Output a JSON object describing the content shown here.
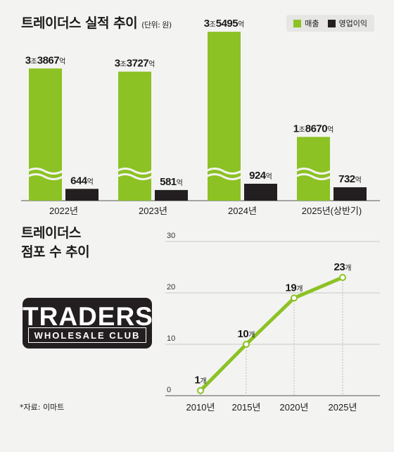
{
  "bar_title": "트레이더스 실적 추이",
  "bar_unit": "(단위: 원)",
  "legend": {
    "sales_label": "매출",
    "profit_label": "영업이익"
  },
  "line_title": "트레이더스 점포 수 추이",
  "line_title_lines": [
    "트레이더스",
    "점포 수 추이"
  ],
  "logo": {
    "main": "TRADERS",
    "sub": "WHOLESALE CLUB"
  },
  "source": "*자료: 이마트",
  "colors": {
    "sales": "#8cc224",
    "profit": "#231f20",
    "line": "#8cc224",
    "background": "#f3f3f1"
  },
  "chart_data": [
    {
      "type": "bar",
      "title": "트레이더스 실적 추이",
      "categories": [
        "2022년",
        "2023년",
        "2024년",
        "2025년(상반기)"
      ],
      "series": [
        {
          "name": "매출",
          "values": [
            33867,
            33727,
            35495,
            18670
          ],
          "labels": [
            "3조3867억",
            "3조3727억",
            "3조5495억",
            "1조8670억"
          ]
        },
        {
          "name": "영업이익",
          "values": [
            644,
            581,
            924,
            732
          ],
          "labels": [
            "644억",
            "581억",
            "924억",
            "732억"
          ]
        }
      ],
      "broken_axis": true
    },
    {
      "type": "line",
      "title": "트레이더스 점포 수 추이",
      "x": [
        "2010년",
        "2015년",
        "2020년",
        "2025년"
      ],
      "values": [
        1,
        10,
        19,
        23
      ],
      "labels": [
        "1개",
        "10개",
        "19개",
        "23개"
      ],
      "yticks": [
        "0",
        "10",
        "20",
        "30"
      ],
      "ylim": [
        0,
        30
      ],
      "grid": true
    }
  ]
}
